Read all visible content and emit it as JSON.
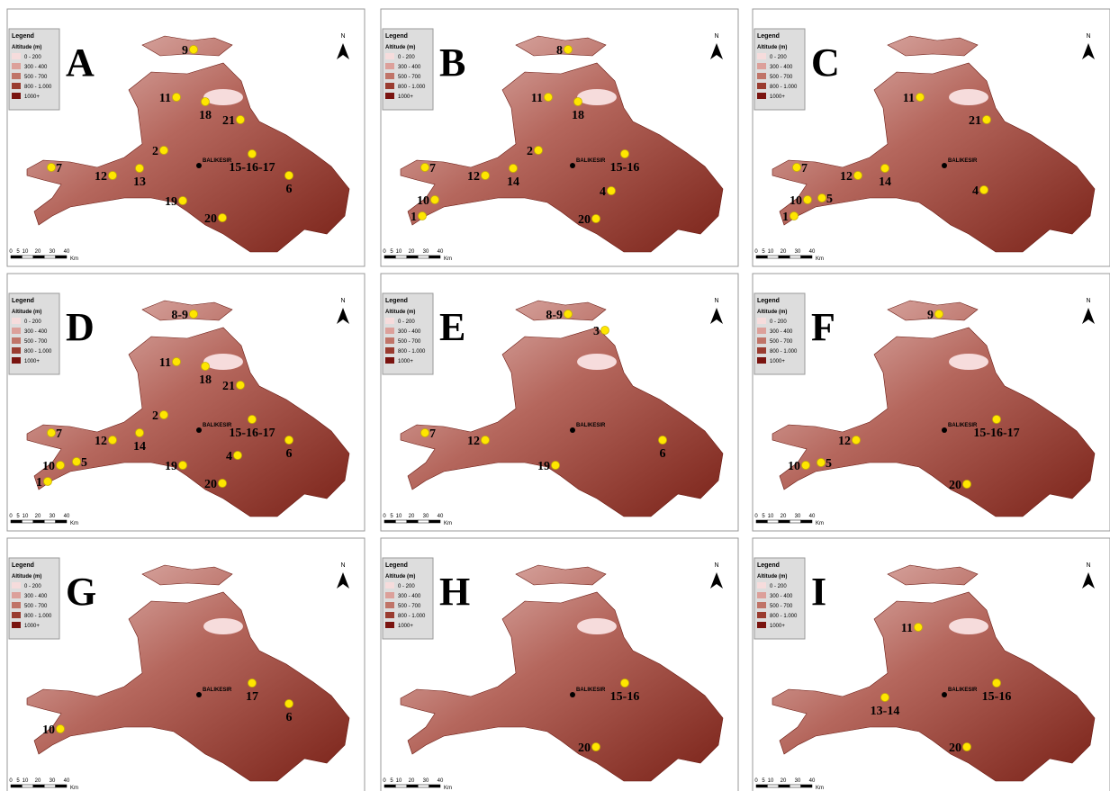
{
  "legend": {
    "title": "Legend",
    "subtitle": "Altitude (m)",
    "items": [
      "0 - 200",
      "300 - 400",
      "500 - 700",
      "800 - 1.000",
      "1000+"
    ]
  },
  "scale": {
    "ticks": [
      "0",
      "5",
      "10",
      "20",
      "30",
      "40"
    ],
    "unit": "Km"
  },
  "north": "N",
  "city": "BALIKESIR",
  "panels": [
    {
      "letter": "A",
      "points": [
        "9",
        "11",
        "18",
        "21",
        "2",
        "15-16-17",
        "7",
        "13",
        "12",
        "6",
        "19",
        "20"
      ]
    },
    {
      "letter": "B",
      "points": [
        "8",
        "11",
        "18",
        "2",
        "15-16",
        "7",
        "14",
        "12",
        "4",
        "10",
        "1",
        "20"
      ]
    },
    {
      "letter": "C",
      "points": [
        "11",
        "21",
        "7",
        "14",
        "12",
        "4",
        "10",
        "5",
        "1"
      ]
    },
    {
      "letter": "D",
      "points": [
        "8-9",
        "11",
        "18",
        "21",
        "2",
        "15-16-17",
        "7",
        "14",
        "12",
        "6",
        "4",
        "10",
        "5",
        "19",
        "1",
        "20"
      ]
    },
    {
      "letter": "E",
      "points": [
        "8-9",
        "3",
        "7",
        "12",
        "6",
        "19"
      ]
    },
    {
      "letter": "F",
      "points": [
        "9",
        "15-16-17",
        "12",
        "10",
        "5",
        "20"
      ]
    },
    {
      "letter": "G",
      "points": [
        "17",
        "6",
        "10"
      ]
    },
    {
      "letter": "H",
      "points": [
        "15-16",
        "20"
      ]
    },
    {
      "letter": "I",
      "points": [
        "11",
        "15-16",
        "13-14",
        "20"
      ]
    }
  ]
}
